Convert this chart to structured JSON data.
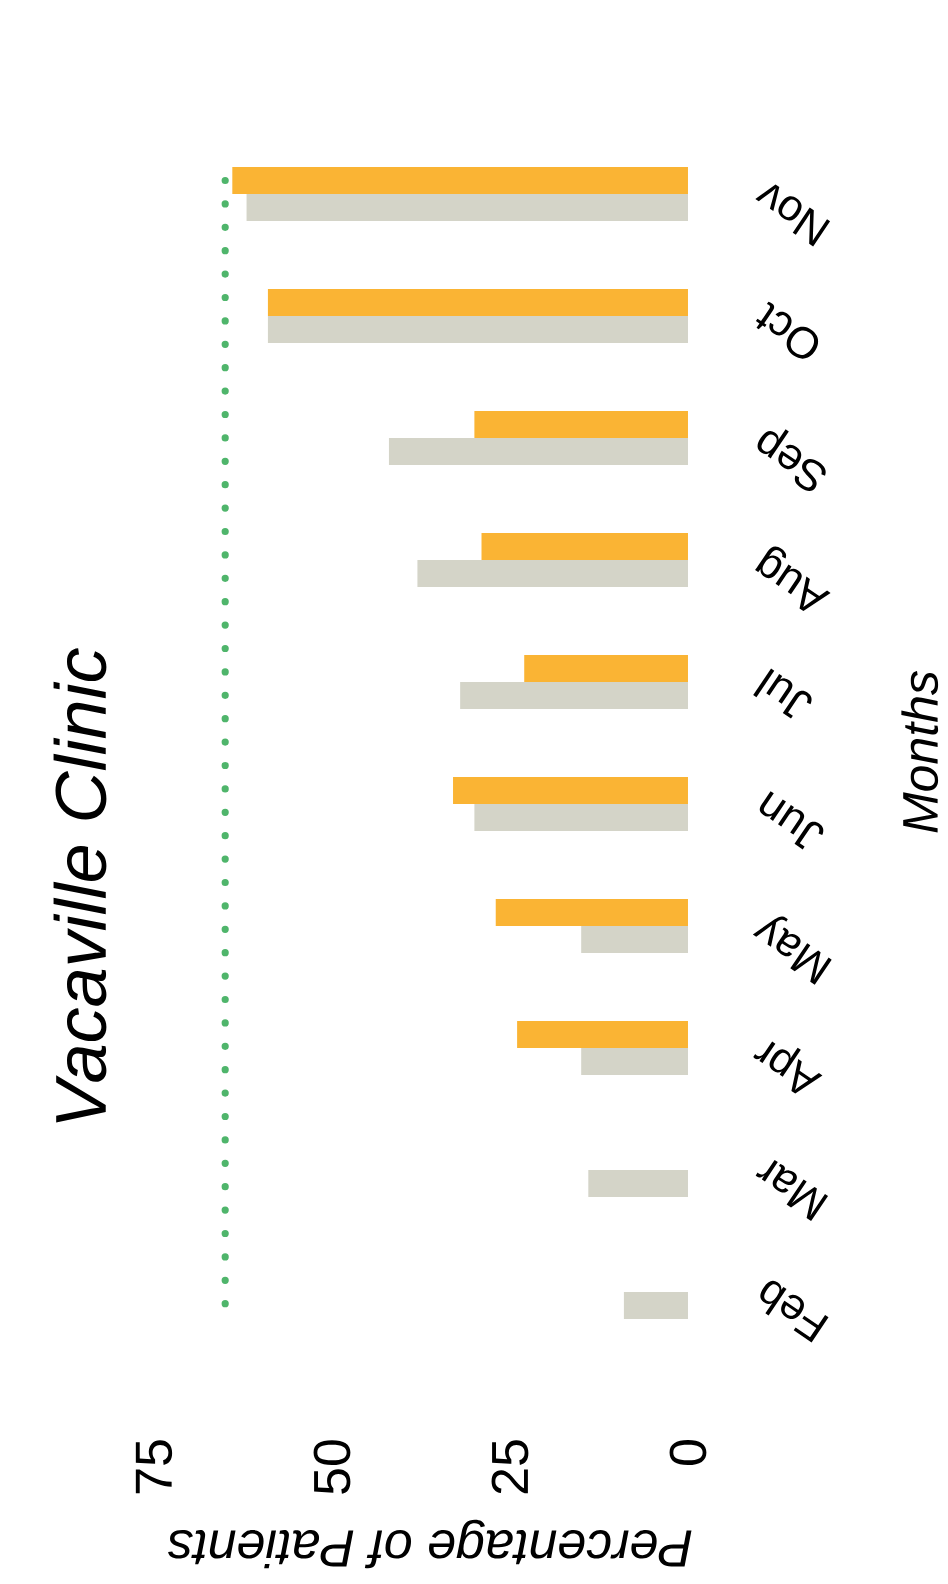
{
  "chart_data": {
    "type": "bar",
    "orientation": "horizontal",
    "title": "Vacaville Clinic",
    "xlabel": "Percentage of Patients",
    "ylabel": "Months",
    "categories": [
      "Nov",
      "Oct",
      "Sep",
      "Aug",
      "Jul",
      "Jun",
      "May",
      "Apr",
      "Mar",
      "Feb"
    ],
    "series": [
      {
        "color": "#d4d4c8",
        "values": [
          62,
          59,
          42,
          38,
          32,
          30,
          15,
          15,
          14,
          9
        ]
      },
      {
        "color": "#fab434",
        "values": [
          64,
          59,
          30,
          29,
          23,
          33,
          27,
          24,
          null,
          null
        ]
      }
    ],
    "xlim": [
      75,
      0
    ],
    "xticks": [
      0,
      25,
      50,
      75
    ],
    "ref_lines": [
      {
        "axis": "x",
        "value": 65,
        "color": "#4fb56b",
        "line_style": "dotted"
      }
    ]
  }
}
